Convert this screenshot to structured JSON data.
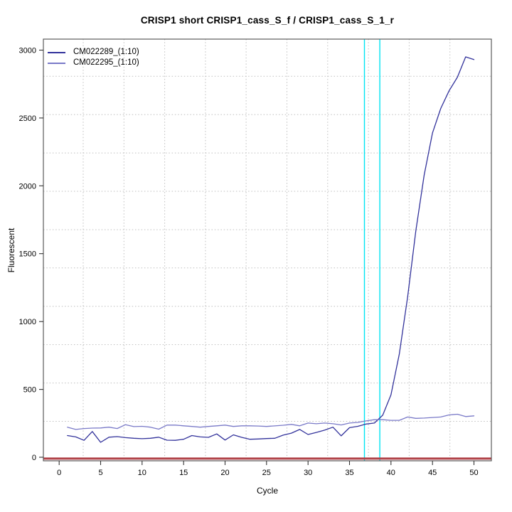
{
  "chart_data": {
    "type": "line",
    "title": "CRISP1 short CRISP1_cass_S_f / CRISP1_cass_S_1_r",
    "xlabel": "Cycle",
    "ylabel": "Fluorescent",
    "xlim": [
      -1.9,
      52.1
    ],
    "ylim": [
      -26,
      3081
    ],
    "xticks": [
      0,
      5,
      10,
      15,
      20,
      25,
      30,
      35,
      40,
      45,
      50
    ],
    "yticks": [
      0,
      500,
      1000,
      1500,
      2000,
      2500,
      3000
    ],
    "grid": {
      "x": [
        2.9,
        7.81,
        12.72,
        17.63,
        22.54,
        27.46,
        32.37,
        37.28,
        42.19,
        47.1
      ],
      "y": [
        265,
        547,
        830,
        1112,
        1395,
        1677,
        1960,
        2242,
        2525,
        2807
      ]
    },
    "x": [
      1,
      2,
      3,
      4,
      5,
      6,
      7,
      8,
      9,
      10,
      11,
      12,
      13,
      14,
      15,
      16,
      17,
      18,
      19,
      20,
      21,
      22,
      23,
      24,
      25,
      26,
      27,
      28,
      29,
      30,
      31,
      32,
      33,
      34,
      35,
      36,
      37,
      38,
      39,
      40,
      41,
      42,
      43,
      44,
      45,
      46,
      47,
      48,
      49,
      50
    ],
    "series": [
      {
        "name": "CM022289_(1:10)",
        "color": "#32329b",
        "values": [
          160,
          150,
          125,
          190,
          110,
          148,
          152,
          145,
          140,
          137,
          140,
          148,
          126,
          125,
          133,
          160,
          150,
          147,
          172,
          127,
          165,
          147,
          133,
          135,
          138,
          140,
          163,
          178,
          205,
          168,
          183,
          200,
          222,
          158,
          218,
          228,
          245,
          252,
          310,
          460,
          760,
          1180,
          1670,
          2080,
          2390,
          2570,
          2700,
          2800,
          2950,
          2930
        ]
      },
      {
        "name": "CM022295_(1:10)",
        "color": "#7a7ac8",
        "values": [
          222,
          205,
          212,
          215,
          216,
          222,
          212,
          240,
          226,
          228,
          222,
          207,
          237,
          237,
          232,
          227,
          222,
          227,
          232,
          237,
          227,
          232,
          232,
          230,
          227,
          231,
          236,
          242,
          232,
          252,
          247,
          252,
          247,
          238,
          252,
          257,
          268,
          277,
          277,
          272,
          272,
          297,
          287,
          289,
          293,
          297,
          312,
          317,
          300,
          305
        ]
      }
    ],
    "vlines": {
      "color": "#00e4f2",
      "x": [
        36.8,
        38.65
      ],
      "meaning": "threshold-cycle-markers"
    },
    "hlines": {
      "color": "#b04046",
      "y": [
        -10
      ],
      "meaning": "baseline-threshold"
    },
    "legend_position": "top-left",
    "grid_on": true
  }
}
